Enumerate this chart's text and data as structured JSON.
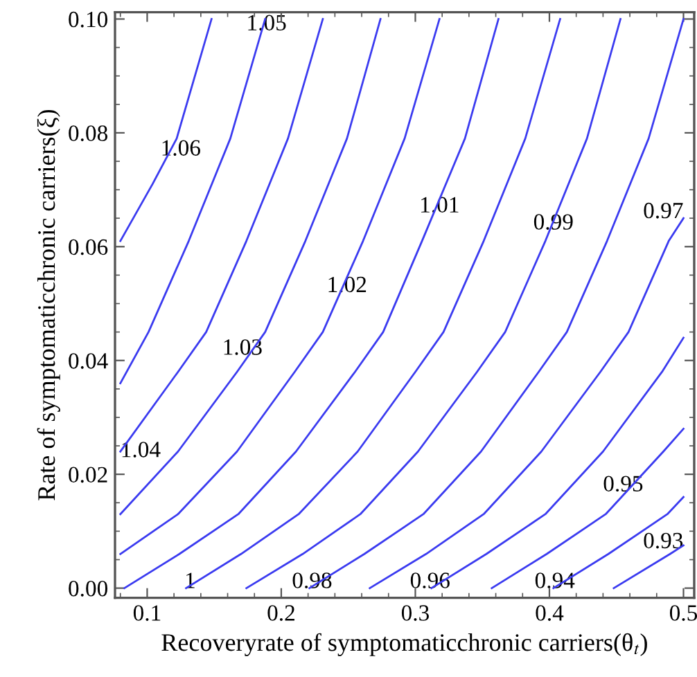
{
  "chart_data": {
    "type": "line",
    "xlabel": "Recoveryrate of symptomaticchronic carriers(θ$_{t}$)",
    "ylabel": "Rate of symptomaticchronic carriers(ξ)",
    "xlim": [
      0.076,
      0.508
    ],
    "ylim": [
      -0.0017,
      0.1012
    ],
    "xticks": [
      {
        "value": 0.08,
        "label": null
      },
      0.1,
      {
        "value": 0.12,
        "label": null
      },
      {
        "value": 0.14,
        "label": null
      },
      {
        "value": 0.16,
        "label": null
      },
      {
        "value": 0.18,
        "label": null
      },
      0.2,
      {
        "value": 0.22,
        "label": null
      },
      {
        "value": 0.24,
        "label": null
      },
      {
        "value": 0.26,
        "label": null
      },
      {
        "value": 0.28,
        "label": null
      },
      0.3,
      {
        "value": 0.32,
        "label": null
      },
      {
        "value": 0.34,
        "label": null
      },
      {
        "value": 0.36,
        "label": null
      },
      {
        "value": 0.38,
        "label": null
      },
      0.4,
      {
        "value": 0.42,
        "label": null
      },
      {
        "value": 0.44,
        "label": null
      },
      {
        "value": 0.46,
        "label": null
      },
      {
        "value": 0.48,
        "label": null
      },
      0.5
    ],
    "yticks": [
      {
        "value": 0,
        "label": "0.00"
      },
      {
        "value": 0.005,
        "label": null
      },
      {
        "value": 0.01,
        "label": null
      },
      {
        "value": 0.015,
        "label": null
      },
      {
        "value": 0.02,
        "label": "0.02"
      },
      {
        "value": 0.025,
        "label": null
      },
      {
        "value": 0.03,
        "label": null
      },
      {
        "value": 0.035,
        "label": null
      },
      {
        "value": 0.04,
        "label": "0.04"
      },
      {
        "value": 0.045,
        "label": null
      },
      {
        "value": 0.05,
        "label": null
      },
      {
        "value": 0.055,
        "label": null
      },
      {
        "value": 0.06,
        "label": "0.06"
      },
      {
        "value": 0.065,
        "label": null
      },
      {
        "value": 0.07,
        "label": null
      },
      {
        "value": 0.075,
        "label": null
      },
      {
        "value": 0.08,
        "label": "0.08"
      },
      {
        "value": 0.085,
        "label": null
      },
      {
        "value": 0.09,
        "label": null
      },
      {
        "value": 0.095,
        "label": null
      },
      {
        "value": 0.1,
        "label": "0.10"
      }
    ],
    "grid": false,
    "marker": "none",
    "line_style": "solid",
    "series": [
      {
        "color": "#3b3bf0",
        "x": [
          0.148,
          0.122,
          0.104,
          0.08
        ],
        "values": [
          0.1,
          0.079,
          0.071,
          0.061
        ]
      },
      {
        "color": "#3b3bf0",
        "x": [
          0.188,
          0.162,
          0.131,
          0.101,
          0.08
        ],
        "values": [
          0.1,
          0.079,
          0.061,
          0.045,
          0.036
        ]
      },
      {
        "color": "#3b3bf0",
        "x": [
          0.231,
          0.205,
          0.174,
          0.144,
          0.123,
          0.08
        ],
        "values": [
          0.1,
          0.079,
          0.061,
          0.045,
          0.038,
          0.024
        ]
      },
      {
        "color": "#3b3bf0",
        "x": [
          0.274,
          0.249,
          0.218,
          0.188,
          0.167,
          0.123,
          0.08
        ],
        "values": [
          0.1,
          0.079,
          0.061,
          0.045,
          0.038,
          0.024,
          0.013
        ]
      },
      {
        "color": "#3b3bf0",
        "x": [
          0.318,
          0.292,
          0.261,
          0.231,
          0.21,
          0.167,
          0.123,
          0.08
        ],
        "values": [
          0.1,
          0.079,
          0.061,
          0.045,
          0.038,
          0.024,
          0.013,
          0.006
        ]
      },
      {
        "color": "#3b3bf0",
        "x": [
          0.362,
          0.337,
          0.305,
          0.276,
          0.255,
          0.211,
          0.168,
          0.124,
          0.083
        ],
        "values": [
          0.1,
          0.079,
          0.061,
          0.045,
          0.038,
          0.024,
          0.013,
          0.006,
          0.0
        ]
      },
      {
        "color": "#3b3bf0",
        "x": [
          0.408,
          0.382,
          0.351,
          0.321,
          0.3,
          0.257,
          0.213,
          0.17,
          0.129
        ],
        "values": [
          0.1,
          0.079,
          0.061,
          0.045,
          0.038,
          0.024,
          0.013,
          0.006,
          0.0
        ]
      },
      {
        "color": "#3b3bf0",
        "x": [
          0.453,
          0.428,
          0.397,
          0.367,
          0.346,
          0.302,
          0.259,
          0.216,
          0.174
        ],
        "values": [
          0.1,
          0.079,
          0.061,
          0.045,
          0.038,
          0.024,
          0.013,
          0.006,
          0.0
        ]
      },
      {
        "color": "#3b3bf0",
        "x": [
          0.5,
          0.474,
          0.443,
          0.413,
          0.392,
          0.349,
          0.306,
          0.262,
          0.221
        ],
        "values": [
          0.1,
          0.079,
          0.061,
          0.045,
          0.038,
          0.024,
          0.013,
          0.006,
          0.0
        ]
      },
      {
        "color": "#3b3bf0",
        "x": [
          0.5,
          0.489,
          0.459,
          0.438,
          0.394,
          0.351,
          0.308,
          0.266
        ],
        "values": [
          0.065,
          0.061,
          0.045,
          0.038,
          0.024,
          0.013,
          0.006,
          0.0
        ]
      },
      {
        "color": "#3b3bf0",
        "x": [
          0.5,
          0.484,
          0.44,
          0.397,
          0.353,
          0.312
        ],
        "values": [
          0.044,
          0.038,
          0.024,
          0.013,
          0.006,
          0.0
        ]
      },
      {
        "color": "#3b3bf0",
        "x": [
          0.5,
          0.485,
          0.442,
          0.398,
          0.357
        ],
        "values": [
          0.028,
          0.024,
          0.013,
          0.006,
          0.0
        ]
      },
      {
        "color": "#3b3bf0",
        "x": [
          0.5,
          0.488,
          0.444,
          0.403
        ],
        "values": [
          0.016,
          0.013,
          0.006,
          0.0
        ]
      },
      {
        "color": "#3b3bf0",
        "x": [
          0.5,
          0.49,
          0.448
        ],
        "values": [
          0.0075,
          0.006,
          0.0
        ]
      }
    ],
    "annotations": [
      {
        "text": "1.06",
        "x": 0.125,
        "y": 0.077
      },
      {
        "text": "1.05",
        "x": 0.189,
        "y": 0.099
      },
      {
        "text": "1.04",
        "x": 0.08,
        "y": 0.024
      },
      {
        "text": "1.03",
        "x": 0.171,
        "y": 0.042
      },
      {
        "text": "1.02",
        "x": 0.249,
        "y": 0.053
      },
      {
        "text": "1.01",
        "x": 0.318,
        "y": 0.067
      },
      {
        "text": "1",
        "x": 0.132,
        "y": 0.001
      },
      {
        "text": "0.99",
        "x": 0.403,
        "y": 0.064
      },
      {
        "text": "0.98",
        "x": 0.223,
        "y": 0.001
      },
      {
        "text": "0.97",
        "x": 0.5,
        "y": 0.066
      },
      {
        "text": "0.96",
        "x": 0.311,
        "y": 0.001
      },
      {
        "text": "0.95",
        "x": 0.455,
        "y": 0.018
      },
      {
        "text": "0.94",
        "x": 0.404,
        "y": 0.001
      },
      {
        "text": "0.93",
        "x": 0.5,
        "y": 0.008
      }
    ]
  }
}
